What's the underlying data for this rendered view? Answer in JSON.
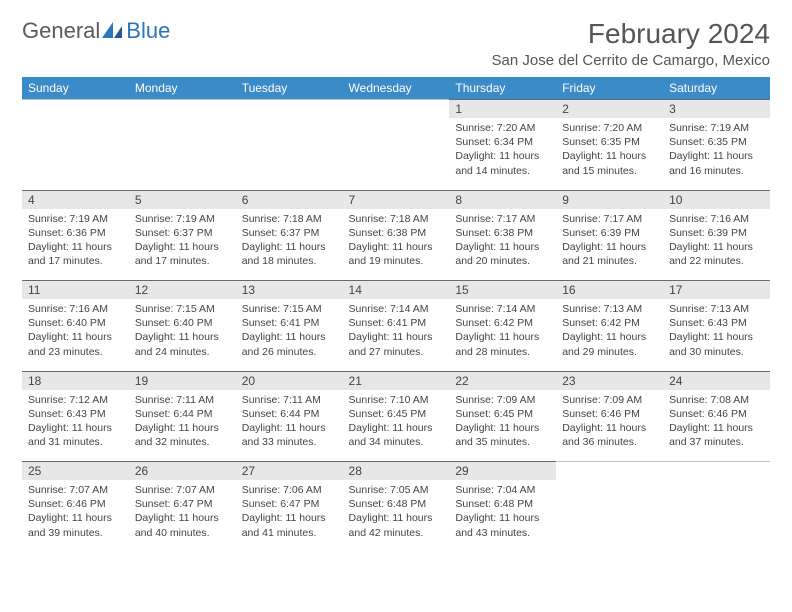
{
  "logo": {
    "text1": "General",
    "text2": "Blue"
  },
  "title": "February 2024",
  "location": "San Jose del Cerrito de Camargo, Mexico",
  "colors": {
    "header_bg": "#3b8bc8",
    "header_text": "#ffffff",
    "daynum_bg": "#e7e7e7",
    "daynum_border": "#6a6a6a",
    "text": "#444444",
    "logo_gray": "#5a5a5a",
    "logo_blue": "#2a75bb"
  },
  "fonts": {
    "title_size": 28,
    "location_size": 15,
    "weekday_size": 12,
    "cell_size": 10.5
  },
  "weekdays": [
    "Sunday",
    "Monday",
    "Tuesday",
    "Wednesday",
    "Thursday",
    "Friday",
    "Saturday"
  ],
  "weeks": [
    [
      null,
      null,
      null,
      null,
      {
        "day": "1",
        "sunrise": "Sunrise: 7:20 AM",
        "sunset": "Sunset: 6:34 PM",
        "daylight": "Daylight: 11 hours and 14 minutes."
      },
      {
        "day": "2",
        "sunrise": "Sunrise: 7:20 AM",
        "sunset": "Sunset: 6:35 PM",
        "daylight": "Daylight: 11 hours and 15 minutes."
      },
      {
        "day": "3",
        "sunrise": "Sunrise: 7:19 AM",
        "sunset": "Sunset: 6:35 PM",
        "daylight": "Daylight: 11 hours and 16 minutes."
      }
    ],
    [
      {
        "day": "4",
        "sunrise": "Sunrise: 7:19 AM",
        "sunset": "Sunset: 6:36 PM",
        "daylight": "Daylight: 11 hours and 17 minutes."
      },
      {
        "day": "5",
        "sunrise": "Sunrise: 7:19 AM",
        "sunset": "Sunset: 6:37 PM",
        "daylight": "Daylight: 11 hours and 17 minutes."
      },
      {
        "day": "6",
        "sunrise": "Sunrise: 7:18 AM",
        "sunset": "Sunset: 6:37 PM",
        "daylight": "Daylight: 11 hours and 18 minutes."
      },
      {
        "day": "7",
        "sunrise": "Sunrise: 7:18 AM",
        "sunset": "Sunset: 6:38 PM",
        "daylight": "Daylight: 11 hours and 19 minutes."
      },
      {
        "day": "8",
        "sunrise": "Sunrise: 7:17 AM",
        "sunset": "Sunset: 6:38 PM",
        "daylight": "Daylight: 11 hours and 20 minutes."
      },
      {
        "day": "9",
        "sunrise": "Sunrise: 7:17 AM",
        "sunset": "Sunset: 6:39 PM",
        "daylight": "Daylight: 11 hours and 21 minutes."
      },
      {
        "day": "10",
        "sunrise": "Sunrise: 7:16 AM",
        "sunset": "Sunset: 6:39 PM",
        "daylight": "Daylight: 11 hours and 22 minutes."
      }
    ],
    [
      {
        "day": "11",
        "sunrise": "Sunrise: 7:16 AM",
        "sunset": "Sunset: 6:40 PM",
        "daylight": "Daylight: 11 hours and 23 minutes."
      },
      {
        "day": "12",
        "sunrise": "Sunrise: 7:15 AM",
        "sunset": "Sunset: 6:40 PM",
        "daylight": "Daylight: 11 hours and 24 minutes."
      },
      {
        "day": "13",
        "sunrise": "Sunrise: 7:15 AM",
        "sunset": "Sunset: 6:41 PM",
        "daylight": "Daylight: 11 hours and 26 minutes."
      },
      {
        "day": "14",
        "sunrise": "Sunrise: 7:14 AM",
        "sunset": "Sunset: 6:41 PM",
        "daylight": "Daylight: 11 hours and 27 minutes."
      },
      {
        "day": "15",
        "sunrise": "Sunrise: 7:14 AM",
        "sunset": "Sunset: 6:42 PM",
        "daylight": "Daylight: 11 hours and 28 minutes."
      },
      {
        "day": "16",
        "sunrise": "Sunrise: 7:13 AM",
        "sunset": "Sunset: 6:42 PM",
        "daylight": "Daylight: 11 hours and 29 minutes."
      },
      {
        "day": "17",
        "sunrise": "Sunrise: 7:13 AM",
        "sunset": "Sunset: 6:43 PM",
        "daylight": "Daylight: 11 hours and 30 minutes."
      }
    ],
    [
      {
        "day": "18",
        "sunrise": "Sunrise: 7:12 AM",
        "sunset": "Sunset: 6:43 PM",
        "daylight": "Daylight: 11 hours and 31 minutes."
      },
      {
        "day": "19",
        "sunrise": "Sunrise: 7:11 AM",
        "sunset": "Sunset: 6:44 PM",
        "daylight": "Daylight: 11 hours and 32 minutes."
      },
      {
        "day": "20",
        "sunrise": "Sunrise: 7:11 AM",
        "sunset": "Sunset: 6:44 PM",
        "daylight": "Daylight: 11 hours and 33 minutes."
      },
      {
        "day": "21",
        "sunrise": "Sunrise: 7:10 AM",
        "sunset": "Sunset: 6:45 PM",
        "daylight": "Daylight: 11 hours and 34 minutes."
      },
      {
        "day": "22",
        "sunrise": "Sunrise: 7:09 AM",
        "sunset": "Sunset: 6:45 PM",
        "daylight": "Daylight: 11 hours and 35 minutes."
      },
      {
        "day": "23",
        "sunrise": "Sunrise: 7:09 AM",
        "sunset": "Sunset: 6:46 PM",
        "daylight": "Daylight: 11 hours and 36 minutes."
      },
      {
        "day": "24",
        "sunrise": "Sunrise: 7:08 AM",
        "sunset": "Sunset: 6:46 PM",
        "daylight": "Daylight: 11 hours and 37 minutes."
      }
    ],
    [
      {
        "day": "25",
        "sunrise": "Sunrise: 7:07 AM",
        "sunset": "Sunset: 6:46 PM",
        "daylight": "Daylight: 11 hours and 39 minutes."
      },
      {
        "day": "26",
        "sunrise": "Sunrise: 7:07 AM",
        "sunset": "Sunset: 6:47 PM",
        "daylight": "Daylight: 11 hours and 40 minutes."
      },
      {
        "day": "27",
        "sunrise": "Sunrise: 7:06 AM",
        "sunset": "Sunset: 6:47 PM",
        "daylight": "Daylight: 11 hours and 41 minutes."
      },
      {
        "day": "28",
        "sunrise": "Sunrise: 7:05 AM",
        "sunset": "Sunset: 6:48 PM",
        "daylight": "Daylight: 11 hours and 42 minutes."
      },
      {
        "day": "29",
        "sunrise": "Sunrise: 7:04 AM",
        "sunset": "Sunset: 6:48 PM",
        "daylight": "Daylight: 11 hours and 43 minutes."
      },
      null,
      null
    ]
  ]
}
